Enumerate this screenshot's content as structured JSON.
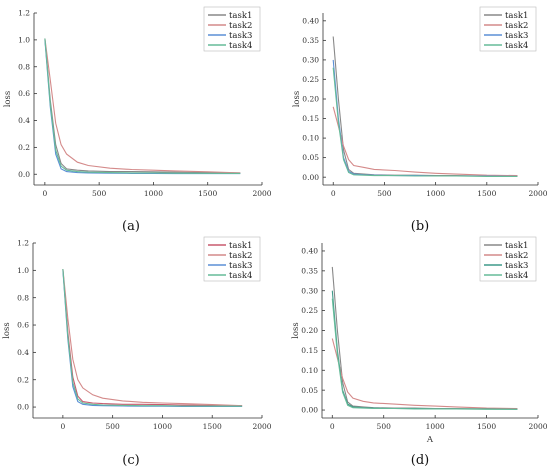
{
  "chart_data": [
    {
      "type": "line",
      "caption": "(a)",
      "ylabel": "loss",
      "xlabel": "",
      "xlim": [
        -100,
        2000
      ],
      "ylim": [
        -0.08,
        1.2
      ],
      "xticks": [
        0,
        500,
        1000,
        1500,
        2000
      ],
      "yticks": [
        0.0,
        0.2,
        0.4,
        0.6,
        0.8,
        1.0,
        1.2
      ],
      "legend": "top-right",
      "colors": [
        "#888888",
        "#d48a8a",
        "#5b8fd6",
        "#66bb99"
      ],
      "series": [
        {
          "name": "task1",
          "x": [
            0,
            50,
            100,
            150,
            200,
            300,
            400,
            600,
            800,
            1000,
            1200,
            1500,
            1800
          ],
          "y": [
            1.01,
            0.55,
            0.22,
            0.08,
            0.04,
            0.03,
            0.025,
            0.02,
            0.02,
            0.018,
            0.015,
            0.012,
            0.01
          ]
        },
        {
          "name": "task2",
          "x": [
            0,
            50,
            100,
            150,
            200,
            300,
            400,
            600,
            800,
            1000,
            1200,
            1500,
            1800
          ],
          "y": [
            1.01,
            0.7,
            0.38,
            0.22,
            0.15,
            0.09,
            0.065,
            0.045,
            0.035,
            0.03,
            0.025,
            0.018,
            0.01
          ]
        },
        {
          "name": "task3",
          "x": [
            0,
            50,
            100,
            150,
            200,
            300,
            400,
            600,
            800,
            1000,
            1200,
            1500,
            1800
          ],
          "y": [
            1.0,
            0.5,
            0.15,
            0.04,
            0.02,
            0.012,
            0.01,
            0.008,
            0.006,
            0.006,
            0.005,
            0.005,
            0.005
          ]
        },
        {
          "name": "task4",
          "x": [
            0,
            50,
            100,
            150,
            200,
            300,
            400,
            600,
            800,
            1000,
            1200,
            1500,
            1800
          ],
          "y": [
            1.01,
            0.52,
            0.18,
            0.06,
            0.03,
            0.02,
            0.015,
            0.012,
            0.01,
            0.01,
            0.008,
            0.007,
            0.006
          ]
        }
      ]
    },
    {
      "type": "line",
      "caption": "(b)",
      "ylabel": "loss",
      "xlabel": "",
      "xlim": [
        -100,
        2000
      ],
      "ylim": [
        -0.02,
        0.42
      ],
      "xticks": [
        0,
        500,
        1000,
        1500,
        2000
      ],
      "yticks": [
        0.0,
        0.05,
        0.1,
        0.15,
        0.2,
        0.25,
        0.3,
        0.35,
        0.4
      ],
      "legend": "top-right",
      "colors": [
        "#888888",
        "#d48a8a",
        "#5b8fd6",
        "#66bb99"
      ],
      "series": [
        {
          "name": "task1",
          "x": [
            0,
            50,
            100,
            150,
            200,
            300,
            400,
            600,
            800,
            1000,
            1200,
            1500,
            1800
          ],
          "y": [
            0.36,
            0.2,
            0.07,
            0.02,
            0.01,
            0.008,
            0.006,
            0.005,
            0.005,
            0.004,
            0.004,
            0.003,
            0.003
          ]
        },
        {
          "name": "task2",
          "x": [
            0,
            50,
            100,
            150,
            200,
            300,
            400,
            600,
            800,
            1000,
            1200,
            1500,
            1800
          ],
          "y": [
            0.18,
            0.13,
            0.08,
            0.045,
            0.03,
            0.025,
            0.02,
            0.017,
            0.013,
            0.01,
            0.008,
            0.005,
            0.004
          ]
        },
        {
          "name": "task3",
          "x": [
            0,
            50,
            100,
            150,
            200,
            300,
            400,
            600,
            800,
            1000,
            1200,
            1500,
            1800
          ],
          "y": [
            0.3,
            0.15,
            0.05,
            0.015,
            0.008,
            0.006,
            0.005,
            0.004,
            0.004,
            0.003,
            0.003,
            0.003,
            0.002
          ]
        },
        {
          "name": "task4",
          "x": [
            0,
            50,
            100,
            150,
            200,
            300,
            400,
            600,
            800,
            1000,
            1200,
            1500,
            1800
          ],
          "y": [
            0.28,
            0.14,
            0.045,
            0.012,
            0.006,
            0.005,
            0.004,
            0.004,
            0.003,
            0.003,
            0.003,
            0.002,
            0.002
          ]
        }
      ]
    },
    {
      "type": "line",
      "caption": "(c)",
      "ylabel": "loss",
      "xlabel": "",
      "xlim": [
        -300,
        2000
      ],
      "ylim": [
        -0.08,
        1.2
      ],
      "xticks": [
        0,
        500,
        1000,
        1500,
        2000
      ],
      "yticks": [
        0.0,
        0.2,
        0.4,
        0.6,
        0.8,
        1.0,
        1.2
      ],
      "legend": "top-right",
      "colors": [
        "#c85a6e",
        "#d48a8a",
        "#5b8fd6",
        "#66bb99"
      ],
      "series": [
        {
          "name": "task1",
          "x": [
            0,
            50,
            100,
            150,
            200,
            300,
            400,
            600,
            800,
            1000,
            1200,
            1500,
            1800
          ],
          "y": [
            1.01,
            0.55,
            0.22,
            0.08,
            0.04,
            0.03,
            0.025,
            0.02,
            0.02,
            0.018,
            0.015,
            0.012,
            0.01
          ]
        },
        {
          "name": "task2",
          "x": [
            0,
            50,
            100,
            150,
            200,
            300,
            400,
            600,
            800,
            1000,
            1200,
            1500,
            1800
          ],
          "y": [
            1.01,
            0.65,
            0.35,
            0.2,
            0.14,
            0.09,
            0.065,
            0.045,
            0.035,
            0.03,
            0.025,
            0.018,
            0.01
          ]
        },
        {
          "name": "task3",
          "x": [
            0,
            50,
            100,
            150,
            200,
            300,
            400,
            600,
            800,
            1000,
            1200,
            1500,
            1800
          ],
          "y": [
            1.0,
            0.5,
            0.15,
            0.04,
            0.02,
            0.012,
            0.01,
            0.008,
            0.006,
            0.006,
            0.005,
            0.005,
            0.005
          ]
        },
        {
          "name": "task4",
          "x": [
            0,
            50,
            100,
            150,
            200,
            300,
            400,
            600,
            800,
            1000,
            1200,
            1500,
            1800
          ],
          "y": [
            1.01,
            0.52,
            0.18,
            0.06,
            0.03,
            0.02,
            0.015,
            0.012,
            0.01,
            0.01,
            0.008,
            0.007,
            0.006
          ]
        }
      ]
    },
    {
      "type": "line",
      "caption": "(d)",
      "ylabel": "loss",
      "xlabel": "A",
      "xlim": [
        -100,
        2000
      ],
      "ylim": [
        -0.02,
        0.42
      ],
      "xticks": [
        0,
        500,
        1000,
        1500,
        2000
      ],
      "yticks": [
        0.0,
        0.05,
        0.1,
        0.15,
        0.2,
        0.25,
        0.3,
        0.35,
        0.4
      ],
      "legend": "top-right",
      "colors": [
        "#888888",
        "#d48a8a",
        "#3f9a8a",
        "#66bb99"
      ],
      "series": [
        {
          "name": "task1",
          "x": [
            0,
            50,
            100,
            150,
            200,
            300,
            400,
            600,
            800,
            1000,
            1200,
            1500,
            1800
          ],
          "y": [
            0.36,
            0.2,
            0.07,
            0.02,
            0.01,
            0.008,
            0.006,
            0.005,
            0.005,
            0.004,
            0.004,
            0.003,
            0.003
          ]
        },
        {
          "name": "task2",
          "x": [
            0,
            50,
            100,
            150,
            200,
            300,
            400,
            600,
            800,
            1000,
            1200,
            1500,
            1800
          ],
          "y": [
            0.18,
            0.13,
            0.08,
            0.045,
            0.03,
            0.022,
            0.018,
            0.015,
            0.012,
            0.01,
            0.008,
            0.005,
            0.004
          ]
        },
        {
          "name": "task3",
          "x": [
            0,
            50,
            100,
            150,
            200,
            300,
            400,
            600,
            800,
            1000,
            1200,
            1500,
            1800
          ],
          "y": [
            0.3,
            0.15,
            0.05,
            0.015,
            0.008,
            0.006,
            0.005,
            0.004,
            0.004,
            0.003,
            0.003,
            0.003,
            0.002
          ]
        },
        {
          "name": "task4",
          "x": [
            0,
            50,
            100,
            150,
            200,
            300,
            400,
            600,
            800,
            1000,
            1200,
            1500,
            1800
          ],
          "y": [
            0.28,
            0.14,
            0.045,
            0.012,
            0.006,
            0.005,
            0.004,
            0.004,
            0.003,
            0.003,
            0.003,
            0.002,
            0.002
          ]
        }
      ]
    }
  ]
}
